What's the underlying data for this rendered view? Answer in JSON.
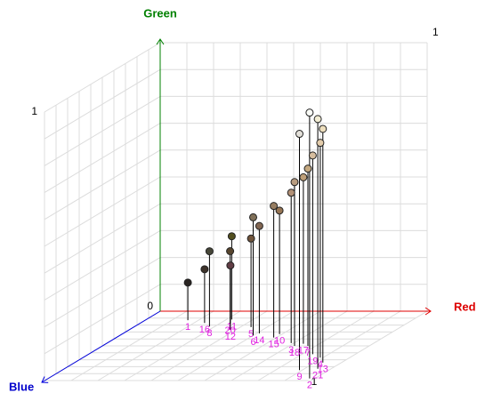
{
  "chart_data": {
    "type": "scatter3d",
    "x_label": "Red",
    "y_label": "Green",
    "z_label": "Blue",
    "xlim": [
      0,
      1
    ],
    "ylim": [
      0,
      1
    ],
    "zlim": [
      0,
      1
    ],
    "xticks": [
      1
    ],
    "yticks": [
      0,
      1
    ],
    "zticks": [
      1
    ],
    "grid": true,
    "labels": [
      "1",
      "2",
      "3",
      "4",
      "5",
      "6",
      "7",
      "8",
      "9",
      "10",
      "11",
      "12",
      "13",
      "14",
      "15",
      "16",
      "17",
      "18",
      "19",
      "20",
      "21"
    ],
    "x": [
      0.16,
      0.98,
      0.69,
      0.89,
      0.44,
      0.5,
      0.77,
      0.28,
      0.89,
      0.59,
      0.32,
      0.38,
      0.93,
      0.51,
      0.59,
      0.24,
      0.74,
      0.72,
      0.84,
      0.34,
      0.95
    ],
    "y": [
      0.14,
      0.99,
      0.56,
      0.8,
      0.33,
      0.44,
      0.66,
      0.28,
      0.88,
      0.46,
      0.31,
      0.24,
      0.87,
      0.4,
      0.49,
      0.2,
      0.62,
      0.61,
      0.74,
      0.27,
      0.93
    ],
    "z": [
      0.13,
      0.97,
      0.46,
      0.67,
      0.23,
      0.35,
      0.5,
      0.22,
      0.85,
      0.33,
      0.12,
      0.27,
      0.74,
      0.32,
      0.38,
      0.17,
      0.47,
      0.5,
      0.62,
      0.18,
      0.83
    ]
  }
}
